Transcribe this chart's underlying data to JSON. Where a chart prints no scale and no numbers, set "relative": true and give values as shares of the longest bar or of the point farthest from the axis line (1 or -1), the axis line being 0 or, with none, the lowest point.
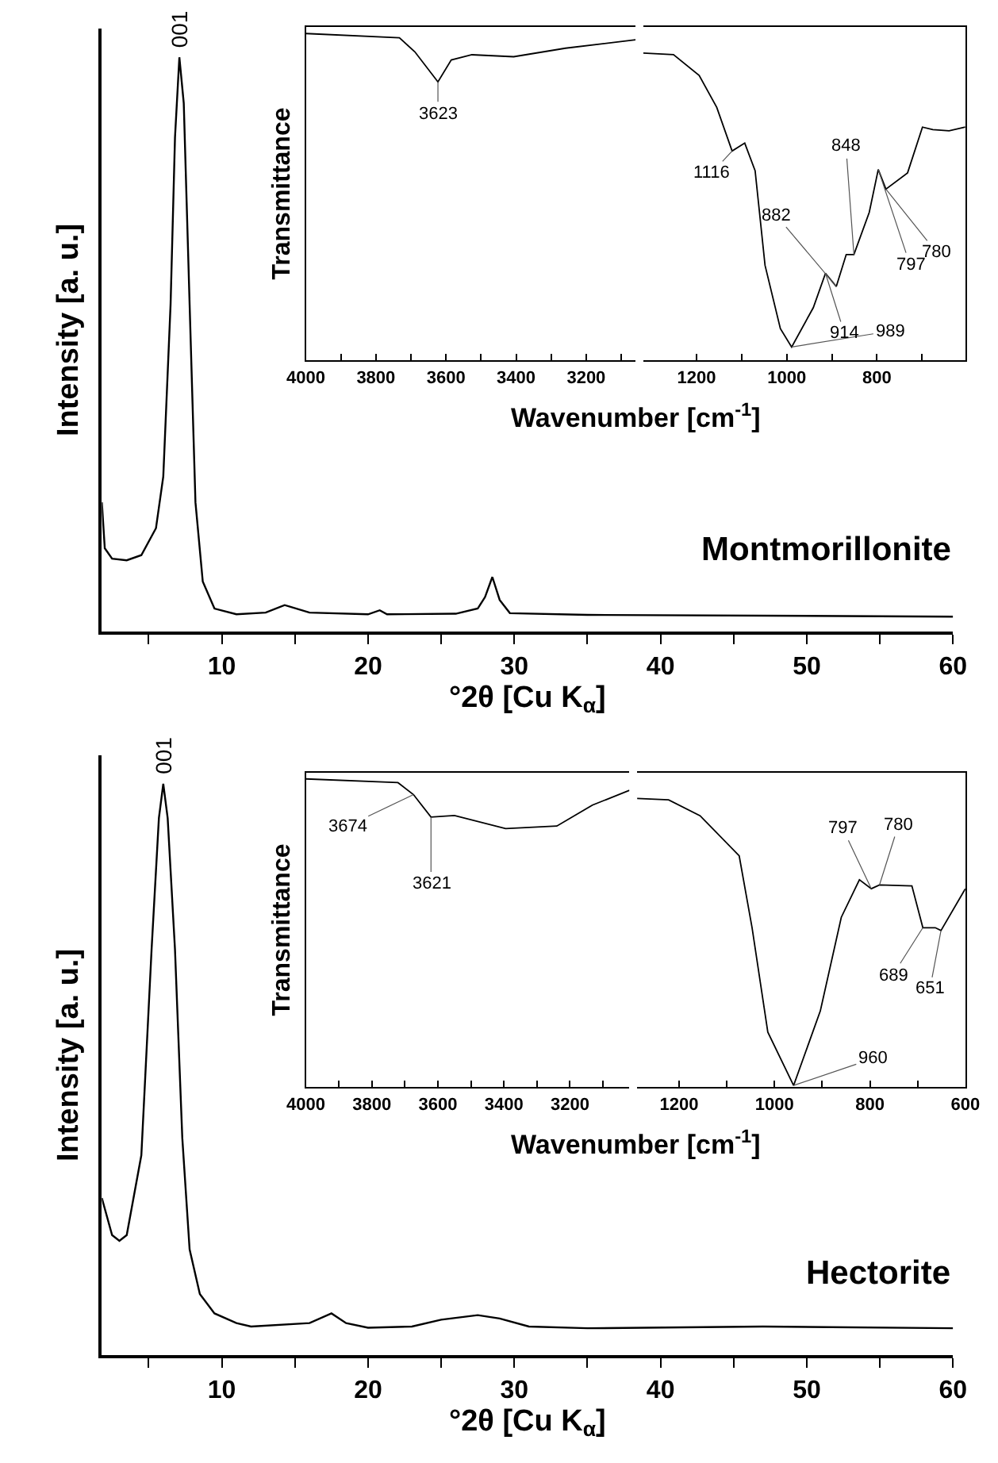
{
  "chart_data": [
    {
      "type": "line",
      "relative": true,
      "color": "#000000",
      "xlabel": "°2θ [Cu K$_{α}$]",
      "ylabel": "Intensity [a. u.]",
      "tick_labels": "x",
      "xlim": [
        1.8,
        60
      ],
      "xticks": [
        {
          "value": 5,
          "label": null
        },
        10,
        {
          "value": 15,
          "label": null
        },
        20,
        {
          "value": 25,
          "label": null
        },
        30,
        {
          "value": 35,
          "label": null
        },
        40,
        {
          "value": 45,
          "label": null
        },
        50,
        {
          "value": 55,
          "label": null
        },
        60
      ],
      "x": [
        1.8,
        2.0,
        2.5,
        3.5,
        4.5,
        5.5,
        6.0,
        6.5,
        6.8,
        7.1,
        7.4,
        7.8,
        8.2,
        8.7,
        9.5,
        11,
        13,
        14.3,
        16,
        20,
        20.8,
        21.3,
        26,
        27.5,
        28,
        28.5,
        29,
        29.7,
        35,
        60
      ],
      "values": [
        0.225,
        0.145,
        0.127,
        0.124,
        0.133,
        0.18,
        0.27,
        0.57,
        0.86,
        1.0,
        0.92,
        0.57,
        0.225,
        0.087,
        0.04,
        0.03,
        0.033,
        0.046,
        0.033,
        0.03,
        0.037,
        0.03,
        0.031,
        0.04,
        0.06,
        0.095,
        0.055,
        0.032,
        0.029,
        0.026
      ],
      "annotations": [
        {
          "text": "001",
          "x": 7.1,
          "y": 1.0
        },
        "Montmorillonite"
      ]
    },
    {
      "type": "line",
      "relative": true,
      "color": "#000000",
      "ylabel": "Transmittance",
      "xlabel": "Wavenumber [cm$^{-1}$]",
      "tick_labels": "x",
      "xlim": [
        4000,
        3059
      ],
      "xticks": [
        4000,
        {
          "value": 3900,
          "label": null
        },
        3800,
        {
          "value": 3700,
          "label": null
        },
        3600,
        {
          "value": 3500,
          "label": null
        },
        3400,
        {
          "value": 3300,
          "label": null
        },
        3200,
        {
          "value": 3100,
          "label": null
        }
      ],
      "x": [
        4000,
        3733,
        3689,
        3623,
        3585,
        3526,
        3407,
        3259,
        3059
      ],
      "values": [
        1.0,
        0.987,
        0.944,
        0.852,
        0.919,
        0.935,
        0.929,
        0.955,
        0.981
      ],
      "annotations": [
        {
          "text": "3623",
          "x": 3623,
          "y": 0.852
        }
      ]
    },
    {
      "type": "line",
      "relative": true,
      "color": "#000000",
      "tick_labels": "x",
      "xlim": [
        1318,
        604
      ],
      "xticks": [
        1200,
        {
          "value": 1100,
          "label": null
        },
        1000,
        {
          "value": 900,
          "label": null
        },
        800,
        {
          "value": 700,
          "label": null
        }
      ],
      "x": [
        1318,
        1251,
        1194,
        1155,
        1121,
        1093,
        1070,
        1048,
        1014,
        989,
        941,
        914,
        890,
        868,
        851,
        817,
        797,
        780,
        732,
        699,
        676,
        640,
        604
      ],
      "values": [
        1.0,
        0.995,
        0.927,
        0.823,
        0.681,
        0.707,
        0.617,
        0.309,
        0.103,
        0.043,
        0.171,
        0.283,
        0.24,
        0.344,
        0.344,
        0.481,
        0.621,
        0.557,
        0.61,
        0.759,
        0.751,
        0.747,
        0.759
      ],
      "annotations": [
        {
          "text": "1116",
          "x": 1121,
          "y": 0.681
        },
        {
          "text": "989",
          "x": 989,
          "y": 0.043
        },
        {
          "text": "914",
          "x": 914,
          "y": 0.283
        },
        {
          "text": "882",
          "x": 890,
          "y": 0.24
        },
        {
          "text": "848",
          "x": 851,
          "y": 0.344
        },
        {
          "text": "797",
          "x": 797,
          "y": 0.621
        },
        {
          "text": "780",
          "x": 780,
          "y": 0.557
        }
      ]
    },
    {
      "type": "line",
      "relative": true,
      "color": "#000000",
      "xlabel": "°2θ [Cu K$_{α}$]",
      "ylabel": "Intensity [a. u.]",
      "tick_labels": "x",
      "xlim": [
        1.8,
        60
      ],
      "xticks": [
        {
          "value": 5,
          "label": null
        },
        10,
        {
          "value": 15,
          "label": null
        },
        20,
        {
          "value": 25,
          "label": null
        },
        30,
        {
          "value": 35,
          "label": null
        },
        40,
        {
          "value": 45,
          "label": null
        },
        50,
        {
          "value": 55,
          "label": null
        },
        60
      ],
      "x": [
        1.8,
        2.5,
        3.0,
        3.5,
        4.5,
        5.2,
        5.7,
        6.0,
        6.3,
        6.8,
        7.3,
        7.8,
        8.5,
        9.5,
        11,
        12,
        16,
        17.5,
        18.5,
        20,
        23,
        25,
        27.5,
        29,
        31,
        35,
        47,
        60
      ],
      "values": [
        0.275,
        0.21,
        0.2,
        0.21,
        0.35,
        0.71,
        0.94,
        1.0,
        0.94,
        0.71,
        0.38,
        0.185,
        0.107,
        0.073,
        0.056,
        0.05,
        0.056,
        0.073,
        0.056,
        0.048,
        0.05,
        0.062,
        0.07,
        0.064,
        0.05,
        0.047,
        0.05,
        0.047
      ],
      "annotations": [
        {
          "text": "001",
          "x": 6.0,
          "y": 1.0
        },
        "Hectorite"
      ]
    },
    {
      "type": "line",
      "relative": true,
      "color": "#000000",
      "ylabel": "Transmittance",
      "xlabel": "Wavenumber [cm$^{-1}$]",
      "tick_labels": "x",
      "xlim": [
        4000,
        3020
      ],
      "xticks": [
        4000,
        {
          "value": 3900,
          "label": null
        },
        3800,
        {
          "value": 3700,
          "label": null
        },
        3600,
        {
          "value": 3500,
          "label": null
        },
        3400,
        {
          "value": 3300,
          "label": null
        },
        3200,
        {
          "value": 3100,
          "label": null
        }
      ],
      "x": [
        4000,
        3721,
        3674,
        3621,
        3550,
        3395,
        3240,
        3132,
        3020
      ],
      "values": [
        1.0,
        0.988,
        0.949,
        0.876,
        0.881,
        0.839,
        0.847,
        0.915,
        0.963
      ],
      "annotations": [
        {
          "text": "3674",
          "x": 3674,
          "y": 0.949
        },
        {
          "text": "3621",
          "x": 3621,
          "y": 0.876
        }
      ]
    },
    {
      "type": "line",
      "relative": true,
      "color": "#000000",
      "tick_labels": "x",
      "xlim": [
        1288,
        600
      ],
      "xticks": [
        1200,
        {
          "value": 1100,
          "label": null
        },
        1000,
        {
          "value": 900,
          "label": null
        },
        800,
        {
          "value": 700,
          "label": null
        },
        600
      ],
      "x": [
        1288,
        1222,
        1156,
        1074,
        1047,
        1014,
        960,
        904,
        860,
        822,
        797,
        780,
        712,
        689,
        663,
        651,
        600
      ],
      "values": [
        1.0,
        0.995,
        0.94,
        0.801,
        0.552,
        0.19,
        0.005,
        0.263,
        0.588,
        0.718,
        0.687,
        0.7,
        0.697,
        0.552,
        0.552,
        0.542,
        0.687
      ],
      "annotations": [
        {
          "text": "960",
          "x": 960,
          "y": 0.005
        },
        {
          "text": "797",
          "x": 797,
          "y": 0.687
        },
        {
          "text": "780",
          "x": 780,
          "y": 0.7
        },
        {
          "text": "689",
          "x": 689,
          "y": 0.552
        },
        {
          "text": "651",
          "x": 651,
          "y": 0.542
        }
      ]
    }
  ]
}
